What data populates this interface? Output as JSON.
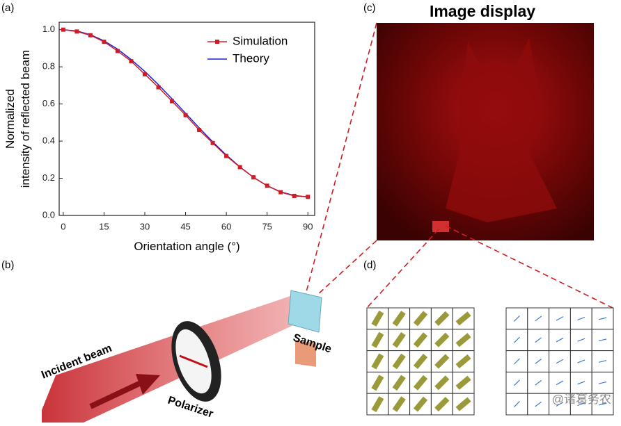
{
  "chart_data": {
    "type": "line",
    "xlabel": "Orientation angle (°)",
    "ylabel": [
      "Normalized",
      "intensity of reflected beam"
    ],
    "x": [
      0,
      5,
      10,
      15,
      20,
      25,
      30,
      35,
      40,
      45,
      50,
      55,
      60,
      65,
      70,
      75,
      80,
      85,
      90
    ],
    "series": [
      {
        "name": "Simulation",
        "color": "#d01c24",
        "marker": "square",
        "values": [
          1.0,
          0.99,
          0.97,
          0.935,
          0.885,
          0.83,
          0.76,
          0.69,
          0.615,
          0.54,
          0.46,
          0.39,
          0.32,
          0.26,
          0.205,
          0.16,
          0.125,
          0.105,
          0.1
        ]
      },
      {
        "name": "Theory",
        "color": "#1a22c8",
        "values": [
          1.0,
          0.993,
          0.973,
          0.94,
          0.895,
          0.839,
          0.775,
          0.704,
          0.628,
          0.55,
          0.472,
          0.396,
          0.325,
          0.261,
          0.205,
          0.16,
          0.127,
          0.107,
          0.1
        ]
      }
    ],
    "xlim": [
      -1.5,
      92.5
    ],
    "ylim": [
      0,
      1.04
    ],
    "xticks": [
      0,
      15,
      30,
      45,
      60,
      75,
      90
    ],
    "yticks": [
      {
        "value": 0,
        "label": "0.0"
      },
      0.2,
      0.4,
      0.6,
      0.8,
      {
        "value": 1,
        "label": "1.0"
      }
    ],
    "legend": "upper right",
    "grid": false
  },
  "figure": {
    "panel_labels": [
      "(a)",
      "(b)",
      "(c)",
      "(d)"
    ],
    "image_title": "Image display",
    "diagram_labels": [
      "Incident beam",
      "Polarizer",
      "Sample"
    ],
    "watermark": "@诸葛务农"
  }
}
